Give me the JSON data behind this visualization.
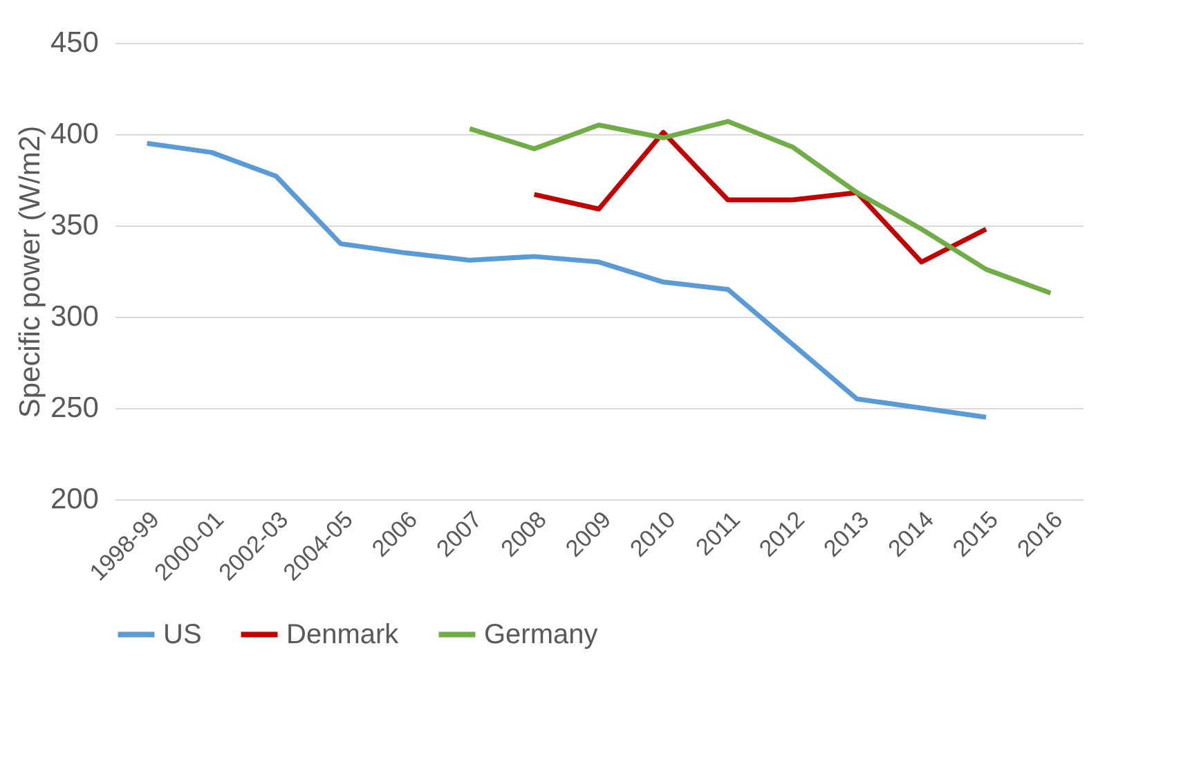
{
  "chart_data": {
    "type": "line",
    "ylabel": "Specific power (W/m2)",
    "categories": [
      "1998-99",
      "2000-01",
      "2002-03",
      "2004-05",
      "2006",
      "2007",
      "2008",
      "2009",
      "2010",
      "2011",
      "2012",
      "2013",
      "2014",
      "2015",
      "2016"
    ],
    "series": [
      {
        "name": "US",
        "color": "#5b9bd5",
        "values": [
          395,
          390,
          377,
          340,
          335,
          331,
          333,
          330,
          319,
          315,
          285,
          255,
          250,
          245,
          null
        ]
      },
      {
        "name": "Denmark",
        "color": "#c00000",
        "values": [
          null,
          null,
          null,
          null,
          null,
          null,
          367,
          359,
          401,
          364,
          364,
          368,
          330,
          348,
          null
        ]
      },
      {
        "name": "Germany",
        "color": "#70ad47",
        "values": [
          null,
          null,
          null,
          null,
          null,
          403,
          392,
          405,
          398,
          407,
          393,
          368,
          348,
          326,
          313
        ]
      }
    ],
    "ylim": [
      200,
      450
    ],
    "yticks": [
      200,
      250,
      300,
      350,
      400,
      450
    ],
    "grid": "y",
    "legend": "bottom",
    "marker": "none",
    "line_style": "solid"
  }
}
